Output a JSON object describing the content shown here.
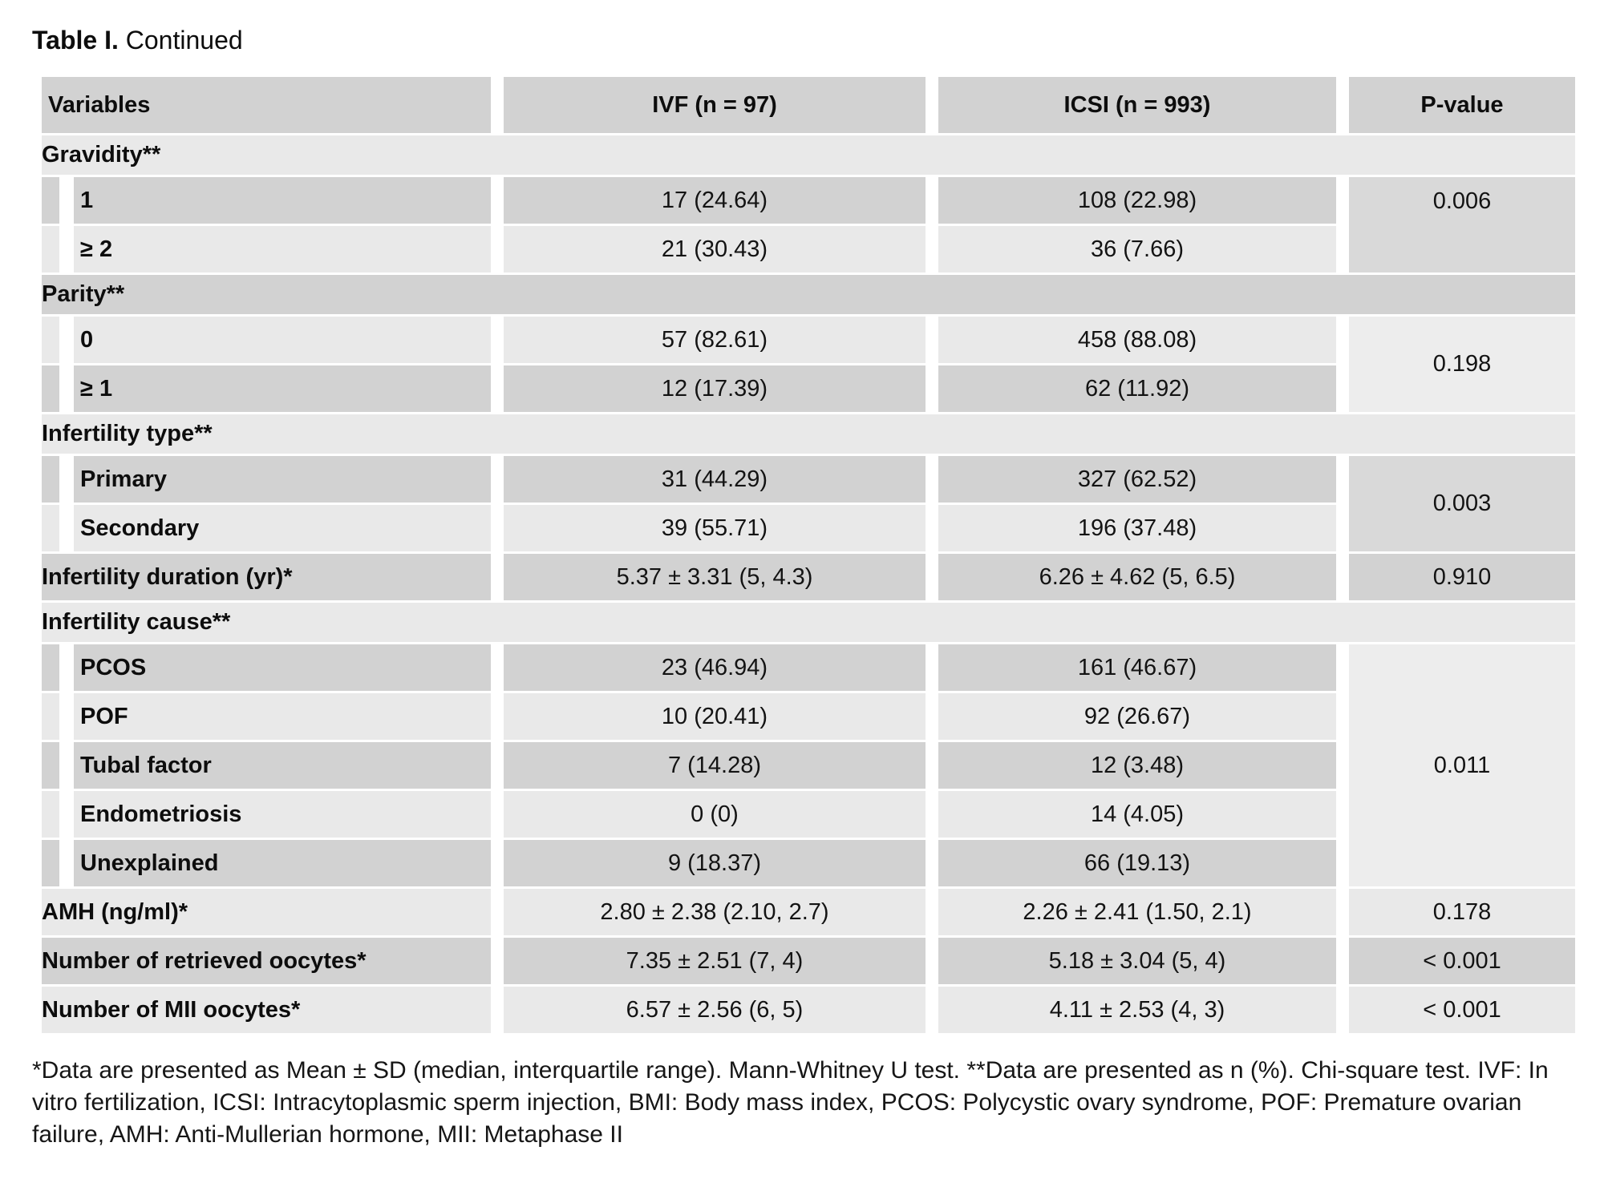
{
  "title": {
    "prefix": "Table I.",
    "suffix": " Continued"
  },
  "columns": [
    "Variables",
    "IVF (n = 97)",
    "ICSI (n = 993)",
    "P-value"
  ],
  "colors": {
    "row_dark": "#d2d2d2",
    "row_light": "#e9e9e9",
    "p_merged_dark": "#d9d9d9",
    "p_merged_light": "#ededed",
    "gap_white": "#ffffff",
    "text": "#111111",
    "background": "#ffffff"
  },
  "rows": [
    {
      "type": "section",
      "shade": "light",
      "label": "Gravidity**"
    },
    {
      "type": "sub",
      "shade": "dark",
      "label": "1",
      "ivf": "17 (24.64)",
      "icsi": "108 (22.98)",
      "p": {
        "value": "0.006",
        "rowspan": 2,
        "shade": "dark",
        "valign": "top"
      }
    },
    {
      "type": "sub",
      "shade": "light",
      "label": "≥ 2",
      "ivf": "21 (30.43)",
      "icsi": "36 (7.66)"
    },
    {
      "type": "section",
      "shade": "dark",
      "label": "Parity**"
    },
    {
      "type": "sub",
      "shade": "light",
      "label": "0",
      "ivf": "57 (82.61)",
      "icsi": "458 (88.08)",
      "p": {
        "value": "0.198",
        "rowspan": 2,
        "shade": "light"
      }
    },
    {
      "type": "sub",
      "shade": "dark",
      "label": "≥ 1",
      "ivf": "12 (17.39)",
      "icsi": "62 (11.92)"
    },
    {
      "type": "section",
      "shade": "light",
      "label": "Infertility type**"
    },
    {
      "type": "sub",
      "shade": "dark",
      "label": "Primary",
      "ivf": "31 (44.29)",
      "icsi": "327 (62.52)",
      "p": {
        "value": "0.003",
        "rowspan": 2,
        "shade": "dark"
      }
    },
    {
      "type": "sub",
      "shade": "light",
      "label": "Secondary",
      "ivf": "39 (55.71)",
      "icsi": "196 (37.48)"
    },
    {
      "type": "plain",
      "shade": "dark",
      "label": "Infertility duration (yr)*",
      "ivf": "5.37 ± 3.31 (5, 4.3)",
      "icsi": "6.26 ± 4.62 (5, 6.5)",
      "p": {
        "value": "0.910",
        "rowspan": 1,
        "shade": "dark"
      }
    },
    {
      "type": "section",
      "shade": "light",
      "label": "Infertility cause**"
    },
    {
      "type": "sub",
      "shade": "dark",
      "label": "PCOS",
      "ivf": "23 (46.94)",
      "icsi": "161 (46.67)",
      "p": {
        "value": "0.011",
        "rowspan": 5,
        "shade": "light"
      }
    },
    {
      "type": "sub",
      "shade": "light",
      "label": "POF",
      "ivf": "10 (20.41)",
      "icsi": "92 (26.67)"
    },
    {
      "type": "sub",
      "shade": "dark",
      "label": "Tubal factor",
      "ivf": "7 (14.28)",
      "icsi": "12 (3.48)"
    },
    {
      "type": "sub",
      "shade": "light",
      "label": "Endometriosis",
      "ivf": "0 (0)",
      "icsi": "14 (4.05)"
    },
    {
      "type": "sub",
      "shade": "dark",
      "label": "Unexplained",
      "ivf": "9 (18.37)",
      "icsi": "66 (19.13)"
    },
    {
      "type": "plain",
      "shade": "light",
      "label": "AMH (ng/ml)*",
      "ivf": "2.80 ± 2.38 (2.10, 2.7)",
      "icsi": "2.26 ± 2.41 (1.50, 2.1)",
      "p": {
        "value": "0.178",
        "rowspan": 1,
        "shade": "light"
      }
    },
    {
      "type": "plain",
      "shade": "dark",
      "label": "Number of retrieved oocytes*",
      "ivf": "7.35 ± 2.51 (7, 4)",
      "icsi": "5.18 ± 3.04 (5, 4)",
      "p": {
        "value": "< 0.001",
        "rowspan": 1,
        "shade": "dark"
      }
    },
    {
      "type": "plain",
      "shade": "light",
      "label": "Number of MII oocytes*",
      "ivf": "6.57 ± 2.56 (6, 5)",
      "icsi": "4.11 ± 2.53 (4, 3)",
      "p": {
        "value": "< 0.001",
        "rowspan": 1,
        "shade": "light"
      }
    }
  ],
  "footnote": "*Data are presented as Mean ± SD (median, interquartile range). Mann-Whitney U test. **Data are presented as n (%). Chi-square test. IVF: In vitro fertilization, ICSI: Intracytoplasmic sperm injection, BMI: Body mass index, PCOS: Polycystic ovary syndrome, POF: Premature ovarian failure, AMH: Anti-Mullerian hormone, MII: Metaphase II"
}
